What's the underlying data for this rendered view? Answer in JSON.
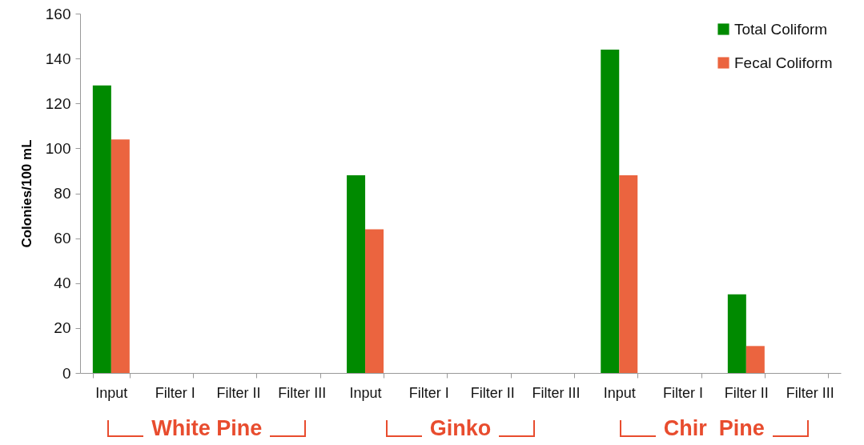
{
  "chart_data": {
    "type": "bar",
    "ylabel": "Colonies/100 mL",
    "categories": [
      "Input",
      "Filter I",
      "Filter II",
      "Filter III",
      "Input",
      "Filter I",
      "Filter II",
      "Filter III",
      "Input",
      "Filter I",
      "Filter II",
      "Filter III"
    ],
    "series": [
      {
        "name": "Total Coliform",
        "color": "#008a00",
        "values": [
          128,
          0,
          0,
          0,
          88,
          0,
          0,
          0,
          144,
          0,
          35,
          0
        ]
      },
      {
        "name": "Fecal Coliform",
        "color": "#eb643f",
        "values": [
          104,
          0,
          0,
          0,
          64,
          0,
          0,
          0,
          88,
          0,
          12,
          0
        ]
      }
    ],
    "ylim": [
      0,
      160
    ],
    "yticks": [
      0,
      20,
      40,
      60,
      80,
      100,
      120,
      140,
      160
    ],
    "legend": "top right",
    "annotations": [
      "White Pine",
      "Ginko",
      "Chir  Pine"
    ]
  }
}
